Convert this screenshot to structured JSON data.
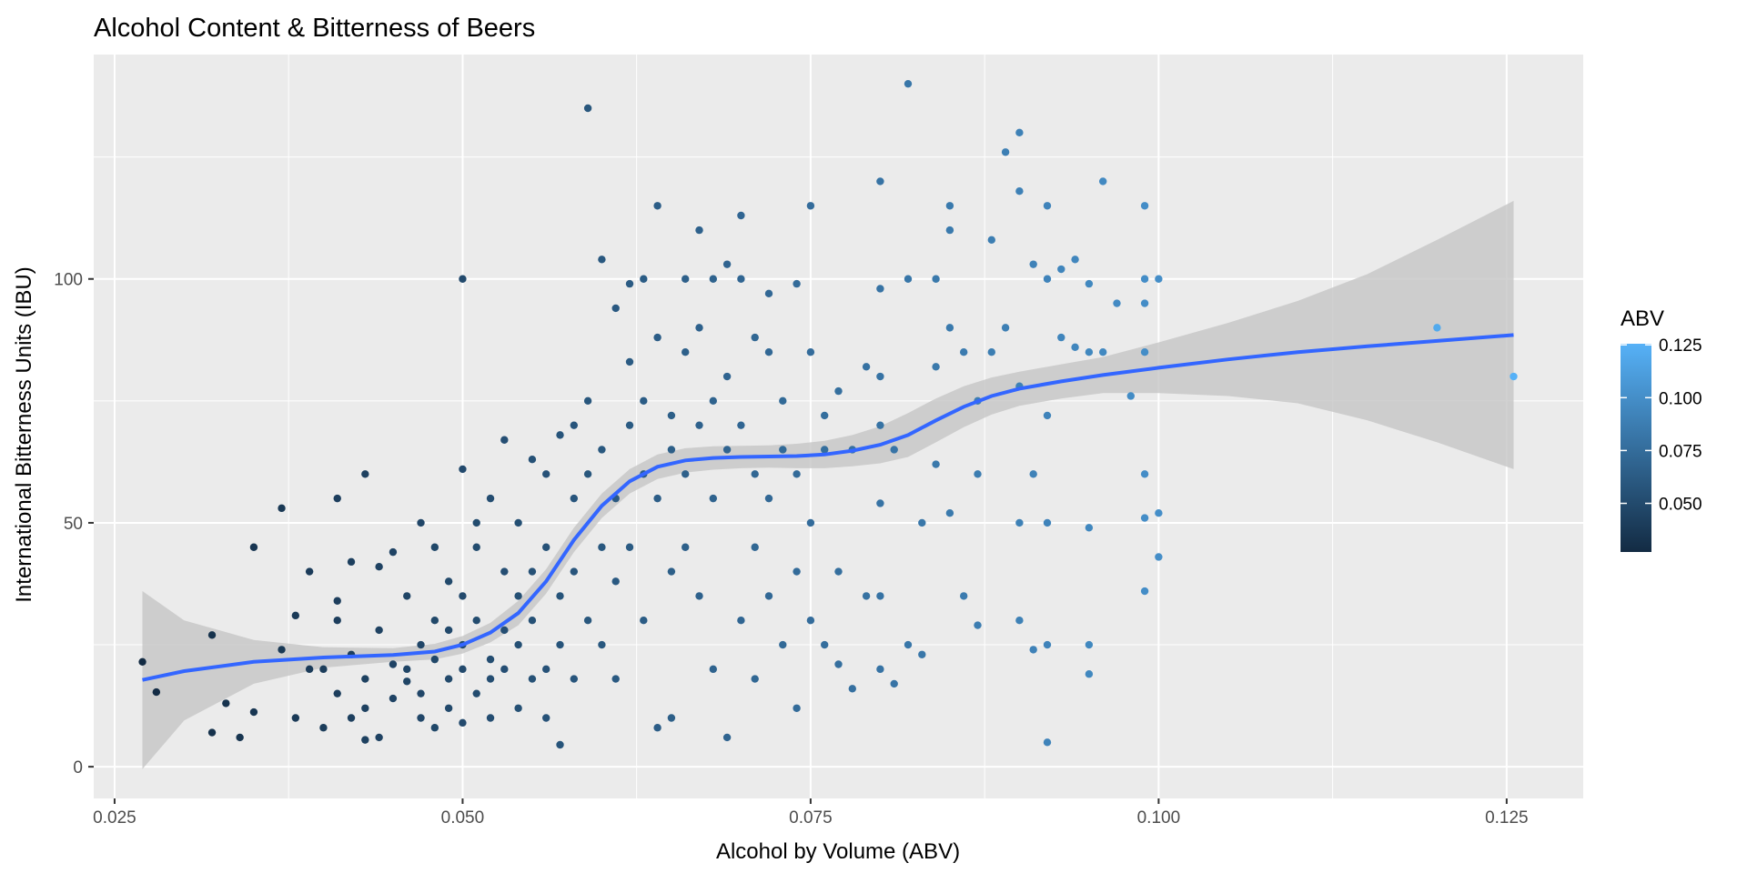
{
  "chart_data": {
    "type": "scatter",
    "title": "Alcohol Content & Bitterness of Beers",
    "xlabel": "Alcohol by Volume (ABV)",
    "ylabel": "International Bitterness Units (IBU)",
    "xlim": [
      0.0235,
      0.1305
    ],
    "ylim": [
      -6.5,
      146
    ],
    "x_ticks": [
      "0.025",
      "0.050",
      "0.075",
      "0.100",
      "0.125"
    ],
    "x_tick_values": [
      0.025,
      0.05,
      0.075,
      0.1,
      0.125
    ],
    "y_ticks": [
      "0",
      "50",
      "100"
    ],
    "y_tick_values": [
      0,
      50,
      100
    ],
    "grid": true,
    "legend": {
      "title": "ABV",
      "placement": "right",
      "labels": [
        "0.125",
        "0.100",
        "0.075",
        "0.050"
      ],
      "label_values": [
        0.125,
        0.1,
        0.075,
        0.05
      ],
      "range": [
        0.027,
        0.1255
      ],
      "colors": {
        "low": "#132b43",
        "high": "#56b1f7"
      }
    },
    "colors": {
      "panel_bg": "#ebebeb",
      "grid": "#ffffff",
      "smooth_line": "#3366ff",
      "ribbon": "#c4c4c4"
    },
    "points": [
      [
        0.027,
        21.5
      ],
      [
        0.028,
        15.3
      ],
      [
        0.032,
        27
      ],
      [
        0.032,
        7
      ],
      [
        0.033,
        13
      ],
      [
        0.034,
        6
      ],
      [
        0.035,
        11.2
      ],
      [
        0.035,
        45
      ],
      [
        0.037,
        53
      ],
      [
        0.037,
        24
      ],
      [
        0.038,
        10
      ],
      [
        0.038,
        31
      ],
      [
        0.039,
        40
      ],
      [
        0.039,
        20
      ],
      [
        0.04,
        20
      ],
      [
        0.04,
        8
      ],
      [
        0.041,
        34
      ],
      [
        0.041,
        15
      ],
      [
        0.041,
        30
      ],
      [
        0.041,
        55
      ],
      [
        0.042,
        42
      ],
      [
        0.042,
        23
      ],
      [
        0.042,
        10
      ],
      [
        0.043,
        12
      ],
      [
        0.043,
        18
      ],
      [
        0.043,
        5.5
      ],
      [
        0.043,
        60
      ],
      [
        0.044,
        41
      ],
      [
        0.044,
        28
      ],
      [
        0.044,
        6
      ],
      [
        0.045,
        21
      ],
      [
        0.045,
        44
      ],
      [
        0.045,
        14
      ],
      [
        0.046,
        17.5
      ],
      [
        0.046,
        35
      ],
      [
        0.046,
        20
      ],
      [
        0.047,
        10
      ],
      [
        0.047,
        25
      ],
      [
        0.047,
        50
      ],
      [
        0.047,
        15
      ],
      [
        0.048,
        22
      ],
      [
        0.048,
        30
      ],
      [
        0.048,
        45
      ],
      [
        0.048,
        8
      ],
      [
        0.049,
        18
      ],
      [
        0.049,
        28
      ],
      [
        0.049,
        38
      ],
      [
        0.049,
        12
      ],
      [
        0.05,
        100
      ],
      [
        0.05,
        61
      ],
      [
        0.05,
        20
      ],
      [
        0.05,
        35
      ],
      [
        0.05,
        9
      ],
      [
        0.05,
        25
      ],
      [
        0.051,
        15
      ],
      [
        0.051,
        45
      ],
      [
        0.051,
        30
      ],
      [
        0.051,
        50
      ],
      [
        0.052,
        22
      ],
      [
        0.052,
        18
      ],
      [
        0.052,
        10
      ],
      [
        0.052,
        55
      ],
      [
        0.053,
        67
      ],
      [
        0.053,
        20
      ],
      [
        0.053,
        40
      ],
      [
        0.053,
        28
      ],
      [
        0.054,
        12
      ],
      [
        0.054,
        35
      ],
      [
        0.054,
        25
      ],
      [
        0.054,
        50
      ],
      [
        0.055,
        63
      ],
      [
        0.055,
        18
      ],
      [
        0.055,
        40
      ],
      [
        0.055,
        30
      ],
      [
        0.056,
        20
      ],
      [
        0.056,
        45
      ],
      [
        0.056,
        10
      ],
      [
        0.056,
        60
      ],
      [
        0.057,
        35
      ],
      [
        0.057,
        68
      ],
      [
        0.057,
        4.5
      ],
      [
        0.057,
        25
      ],
      [
        0.058,
        55
      ],
      [
        0.058,
        40
      ],
      [
        0.058,
        18
      ],
      [
        0.058,
        70
      ],
      [
        0.059,
        135
      ],
      [
        0.059,
        30
      ],
      [
        0.059,
        60
      ],
      [
        0.059,
        75
      ],
      [
        0.06,
        104
      ],
      [
        0.06,
        45
      ],
      [
        0.06,
        25
      ],
      [
        0.06,
        65
      ],
      [
        0.061,
        94
      ],
      [
        0.061,
        38
      ],
      [
        0.061,
        55
      ],
      [
        0.061,
        18
      ],
      [
        0.062,
        99
      ],
      [
        0.062,
        83
      ],
      [
        0.062,
        70
      ],
      [
        0.062,
        45
      ],
      [
        0.063,
        100
      ],
      [
        0.063,
        60
      ],
      [
        0.063,
        30
      ],
      [
        0.063,
        75
      ],
      [
        0.064,
        115
      ],
      [
        0.064,
        55
      ],
      [
        0.064,
        8
      ],
      [
        0.064,
        88
      ],
      [
        0.065,
        65
      ],
      [
        0.065,
        72
      ],
      [
        0.065,
        40
      ],
      [
        0.065,
        10
      ],
      [
        0.066,
        100
      ],
      [
        0.066,
        85
      ],
      [
        0.066,
        60
      ],
      [
        0.066,
        45
      ],
      [
        0.067,
        110
      ],
      [
        0.067,
        70
      ],
      [
        0.067,
        35
      ],
      [
        0.067,
        90
      ],
      [
        0.068,
        100
      ],
      [
        0.068,
        75
      ],
      [
        0.068,
        55
      ],
      [
        0.068,
        20
      ],
      [
        0.069,
        103
      ],
      [
        0.069,
        65
      ],
      [
        0.069,
        6
      ],
      [
        0.069,
        80
      ],
      [
        0.07,
        113
      ],
      [
        0.07,
        100
      ],
      [
        0.07,
        70
      ],
      [
        0.07,
        30
      ],
      [
        0.071,
        88
      ],
      [
        0.071,
        60
      ],
      [
        0.071,
        45
      ],
      [
        0.071,
        18
      ],
      [
        0.072,
        97
      ],
      [
        0.072,
        85
      ],
      [
        0.072,
        55
      ],
      [
        0.072,
        35
      ],
      [
        0.073,
        75
      ],
      [
        0.073,
        65
      ],
      [
        0.073,
        25
      ],
      [
        0.074,
        12
      ],
      [
        0.074,
        99
      ],
      [
        0.074,
        60
      ],
      [
        0.074,
        40
      ],
      [
        0.075,
        115
      ],
      [
        0.075,
        85
      ],
      [
        0.075,
        50
      ],
      [
        0.075,
        30
      ],
      [
        0.076,
        72
      ],
      [
        0.076,
        65
      ],
      [
        0.076,
        25
      ],
      [
        0.077,
        77
      ],
      [
        0.077,
        40
      ],
      [
        0.077,
        21
      ],
      [
        0.078,
        65
      ],
      [
        0.078,
        16
      ],
      [
        0.079,
        82
      ],
      [
        0.079,
        35
      ],
      [
        0.08,
        120
      ],
      [
        0.08,
        98
      ],
      [
        0.08,
        80
      ],
      [
        0.08,
        70
      ],
      [
        0.08,
        54
      ],
      [
        0.08,
        35
      ],
      [
        0.08,
        20
      ],
      [
        0.081,
        65
      ],
      [
        0.081,
        17
      ],
      [
        0.082,
        140
      ],
      [
        0.082,
        100
      ],
      [
        0.082,
        25
      ],
      [
        0.083,
        50
      ],
      [
        0.083,
        23
      ],
      [
        0.084,
        100
      ],
      [
        0.084,
        82
      ],
      [
        0.084,
        62
      ],
      [
        0.085,
        115
      ],
      [
        0.085,
        110
      ],
      [
        0.085,
        90
      ],
      [
        0.085,
        52
      ],
      [
        0.086,
        85
      ],
      [
        0.086,
        35
      ],
      [
        0.087,
        75
      ],
      [
        0.087,
        60
      ],
      [
        0.087,
        29
      ],
      [
        0.088,
        108
      ],
      [
        0.088,
        85
      ],
      [
        0.089,
        126
      ],
      [
        0.089,
        90
      ],
      [
        0.09,
        130
      ],
      [
        0.09,
        118
      ],
      [
        0.09,
        78
      ],
      [
        0.09,
        50
      ],
      [
        0.09,
        30
      ],
      [
        0.091,
        103
      ],
      [
        0.091,
        60
      ],
      [
        0.091,
        24
      ],
      [
        0.092,
        115
      ],
      [
        0.092,
        100
      ],
      [
        0.092,
        72
      ],
      [
        0.092,
        50
      ],
      [
        0.092,
        25
      ],
      [
        0.092,
        5
      ],
      [
        0.093,
        102
      ],
      [
        0.093,
        88
      ],
      [
        0.094,
        104
      ],
      [
        0.094,
        86
      ],
      [
        0.095,
        99
      ],
      [
        0.095,
        85
      ],
      [
        0.095,
        49
      ],
      [
        0.095,
        25
      ],
      [
        0.095,
        19
      ],
      [
        0.096,
        120
      ],
      [
        0.096,
        85
      ],
      [
        0.097,
        95
      ],
      [
        0.098,
        76
      ],
      [
        0.099,
        115
      ],
      [
        0.099,
        100
      ],
      [
        0.099,
        95
      ],
      [
        0.099,
        85
      ],
      [
        0.099,
        60
      ],
      [
        0.099,
        51
      ],
      [
        0.099,
        36
      ],
      [
        0.1,
        100
      ],
      [
        0.1,
        52
      ],
      [
        0.1,
        43
      ],
      [
        0.12,
        90
      ],
      [
        0.1255,
        80
      ]
    ],
    "smooth": [
      [
        0.027,
        17.8
      ],
      [
        0.03,
        19.6
      ],
      [
        0.035,
        21.5
      ],
      [
        0.04,
        22.4
      ],
      [
        0.045,
        22.9
      ],
      [
        0.048,
        23.6
      ],
      [
        0.05,
        25
      ],
      [
        0.052,
        27.5
      ],
      [
        0.054,
        31.5
      ],
      [
        0.056,
        38
      ],
      [
        0.058,
        46.5
      ],
      [
        0.06,
        53.5
      ],
      [
        0.062,
        58.5
      ],
      [
        0.064,
        61.5
      ],
      [
        0.066,
        62.8
      ],
      [
        0.068,
        63.3
      ],
      [
        0.07,
        63.5
      ],
      [
        0.072,
        63.6
      ],
      [
        0.074,
        63.7
      ],
      [
        0.076,
        64
      ],
      [
        0.078,
        64.8
      ],
      [
        0.08,
        66
      ],
      [
        0.082,
        68
      ],
      [
        0.084,
        71
      ],
      [
        0.086,
        73.8
      ],
      [
        0.088,
        76
      ],
      [
        0.09,
        77.5
      ],
      [
        0.093,
        79
      ],
      [
        0.096,
        80.3
      ],
      [
        0.1,
        81.8
      ],
      [
        0.105,
        83.5
      ],
      [
        0.11,
        85
      ],
      [
        0.115,
        86.2
      ],
      [
        0.12,
        87.3
      ],
      [
        0.1255,
        88.5
      ]
    ],
    "ribbon_upper": [
      [
        0.027,
        36
      ],
      [
        0.03,
        30
      ],
      [
        0.035,
        26
      ],
      [
        0.04,
        24.5
      ],
      [
        0.045,
        24.3
      ],
      [
        0.048,
        25.2
      ],
      [
        0.05,
        26.8
      ],
      [
        0.052,
        29.5
      ],
      [
        0.054,
        34
      ],
      [
        0.056,
        40.5
      ],
      [
        0.058,
        49
      ],
      [
        0.06,
        56
      ],
      [
        0.062,
        61
      ],
      [
        0.064,
        64
      ],
      [
        0.066,
        65.3
      ],
      [
        0.068,
        65.7
      ],
      [
        0.07,
        65.8
      ],
      [
        0.072,
        65.9
      ],
      [
        0.074,
        66.2
      ],
      [
        0.076,
        66.8
      ],
      [
        0.078,
        68
      ],
      [
        0.08,
        69.8
      ],
      [
        0.082,
        72.5
      ],
      [
        0.084,
        75.5
      ],
      [
        0.086,
        78
      ],
      [
        0.088,
        79.8
      ],
      [
        0.09,
        81
      ],
      [
        0.093,
        82.5
      ],
      [
        0.096,
        84
      ],
      [
        0.1,
        87
      ],
      [
        0.105,
        91
      ],
      [
        0.11,
        95.5
      ],
      [
        0.115,
        101
      ],
      [
        0.12,
        108
      ],
      [
        0.1255,
        116
      ]
    ],
    "ribbon_lower": [
      [
        0.027,
        -0.5
      ],
      [
        0.03,
        9.5
      ],
      [
        0.035,
        17
      ],
      [
        0.04,
        20.3
      ],
      [
        0.045,
        21.5
      ],
      [
        0.048,
        22
      ],
      [
        0.05,
        23.2
      ],
      [
        0.052,
        25.5
      ],
      [
        0.054,
        29
      ],
      [
        0.056,
        35.5
      ],
      [
        0.058,
        44
      ],
      [
        0.06,
        51
      ],
      [
        0.062,
        56
      ],
      [
        0.064,
        59
      ],
      [
        0.066,
        60.3
      ],
      [
        0.068,
        60.9
      ],
      [
        0.07,
        61.2
      ],
      [
        0.072,
        61.3
      ],
      [
        0.074,
        61.2
      ],
      [
        0.076,
        61.2
      ],
      [
        0.078,
        61.6
      ],
      [
        0.08,
        62.2
      ],
      [
        0.082,
        63.5
      ],
      [
        0.084,
        66.5
      ],
      [
        0.086,
        69.6
      ],
      [
        0.088,
        72.2
      ],
      [
        0.09,
        74
      ],
      [
        0.093,
        75.5
      ],
      [
        0.096,
        76.6
      ],
      [
        0.1,
        76.6
      ],
      [
        0.105,
        76
      ],
      [
        0.11,
        74.5
      ],
      [
        0.115,
        71
      ],
      [
        0.12,
        66.5
      ],
      [
        0.1255,
        61
      ]
    ]
  }
}
